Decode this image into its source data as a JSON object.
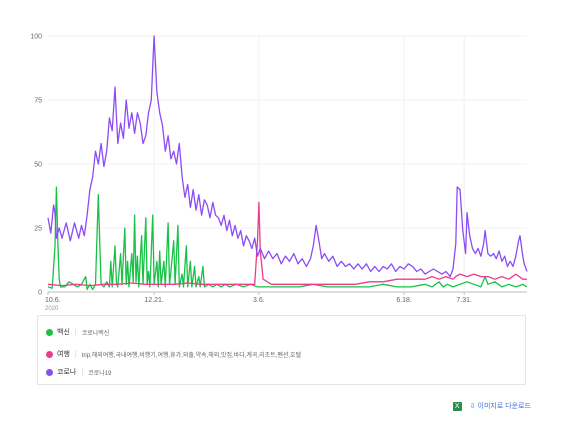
{
  "chart_data": {
    "type": "line",
    "ylim": [
      0,
      100
    ],
    "yticks": [
      "0",
      "25",
      "50",
      "75",
      "100"
    ],
    "xticks": [
      {
        "label": "10.6.",
        "sub": "2020",
        "day": 0
      },
      {
        "label": "12.21.",
        "day": 76
      },
      {
        "label": "3.6.",
        "day": 151
      },
      {
        "label": "6.18.",
        "day": 255
      },
      {
        "label": "7.31.",
        "day": 298
      }
    ],
    "x_range_days": [
      0,
      343
    ],
    "grid": true,
    "series": [
      {
        "name": "코로나",
        "color": "#8c4cf5",
        "points": [
          [
            0,
            29
          ],
          [
            2,
            23
          ],
          [
            4,
            34
          ],
          [
            5,
            31
          ],
          [
            6,
            21
          ],
          [
            8,
            25
          ],
          [
            10,
            21
          ],
          [
            13,
            27
          ],
          [
            16,
            20
          ],
          [
            19,
            27
          ],
          [
            22,
            21
          ],
          [
            24,
            26
          ],
          [
            26,
            22
          ],
          [
            28,
            30
          ],
          [
            30,
            40
          ],
          [
            32,
            45
          ],
          [
            34,
            55
          ],
          [
            36,
            50
          ],
          [
            38,
            58
          ],
          [
            40,
            49
          ],
          [
            42,
            55
          ],
          [
            44,
            68
          ],
          [
            46,
            63
          ],
          [
            48,
            80
          ],
          [
            50,
            58
          ],
          [
            52,
            66
          ],
          [
            54,
            60
          ],
          [
            56,
            75
          ],
          [
            58,
            64
          ],
          [
            60,
            70
          ],
          [
            62,
            62
          ],
          [
            64,
            70
          ],
          [
            66,
            66
          ],
          [
            68,
            58
          ],
          [
            70,
            61
          ],
          [
            72,
            70
          ],
          [
            74,
            75
          ],
          [
            75,
            88
          ],
          [
            76,
            100
          ],
          [
            78,
            78
          ],
          [
            80,
            70
          ],
          [
            82,
            65
          ],
          [
            84,
            55
          ],
          [
            86,
            61
          ],
          [
            88,
            52
          ],
          [
            90,
            55
          ],
          [
            92,
            50
          ],
          [
            94,
            58
          ],
          [
            96,
            45
          ],
          [
            98,
            37
          ],
          [
            100,
            42
          ],
          [
            102,
            33
          ],
          [
            104,
            40
          ],
          [
            106,
            32
          ],
          [
            108,
            38
          ],
          [
            110,
            30
          ],
          [
            112,
            36
          ],
          [
            114,
            34
          ],
          [
            116,
            29
          ],
          [
            118,
            35
          ],
          [
            120,
            30
          ],
          [
            122,
            29
          ],
          [
            124,
            26
          ],
          [
            126,
            30
          ],
          [
            128,
            24
          ],
          [
            130,
            28
          ],
          [
            132,
            22
          ],
          [
            134,
            26
          ],
          [
            136,
            21
          ],
          [
            138,
            24
          ],
          [
            140,
            18
          ],
          [
            142,
            22
          ],
          [
            144,
            20
          ],
          [
            146,
            17
          ],
          [
            148,
            21
          ],
          [
            150,
            14
          ],
          [
            152,
            17
          ],
          [
            155,
            13
          ],
          [
            158,
            16
          ],
          [
            161,
            13
          ],
          [
            164,
            15
          ],
          [
            167,
            11
          ],
          [
            170,
            14
          ],
          [
            173,
            12
          ],
          [
            176,
            15
          ],
          [
            179,
            11
          ],
          [
            182,
            13
          ],
          [
            185,
            10
          ],
          [
            188,
            13
          ],
          [
            190,
            18
          ],
          [
            192,
            26
          ],
          [
            194,
            20
          ],
          [
            196,
            13
          ],
          [
            198,
            15
          ],
          [
            201,
            12
          ],
          [
            204,
            14
          ],
          [
            207,
            10
          ],
          [
            210,
            12
          ],
          [
            213,
            10
          ],
          [
            216,
            11
          ],
          [
            219,
            9
          ],
          [
            222,
            11
          ],
          [
            225,
            9
          ],
          [
            228,
            11
          ],
          [
            231,
            8
          ],
          [
            234,
            10
          ],
          [
            237,
            8
          ],
          [
            240,
            10
          ],
          [
            243,
            9
          ],
          [
            246,
            11
          ],
          [
            249,
            8
          ],
          [
            252,
            10
          ],
          [
            255,
            9
          ],
          [
            258,
            11
          ],
          [
            261,
            10
          ],
          [
            264,
            8
          ],
          [
            267,
            9
          ],
          [
            270,
            7
          ],
          [
            273,
            8
          ],
          [
            276,
            9
          ],
          [
            279,
            8
          ],
          [
            282,
            7
          ],
          [
            285,
            8
          ],
          [
            288,
            6
          ],
          [
            290,
            9
          ],
          [
            292,
            19
          ],
          [
            293,
            41
          ],
          [
            295,
            40
          ],
          [
            297,
            24
          ],
          [
            299,
            15
          ],
          [
            300,
            31
          ],
          [
            302,
            22
          ],
          [
            304,
            17
          ],
          [
            306,
            15
          ],
          [
            308,
            17
          ],
          [
            310,
            14
          ],
          [
            312,
            19
          ],
          [
            313,
            24
          ],
          [
            315,
            15
          ],
          [
            317,
            14
          ],
          [
            319,
            15
          ],
          [
            321,
            13
          ],
          [
            323,
            16
          ],
          [
            325,
            12
          ],
          [
            327,
            14
          ],
          [
            329,
            10
          ],
          [
            331,
            12
          ],
          [
            333,
            10
          ],
          [
            335,
            14
          ],
          [
            337,
            20
          ],
          [
            338,
            22
          ],
          [
            340,
            14
          ],
          [
            341,
            11
          ],
          [
            343,
            8
          ]
        ]
      },
      {
        "name": "여행",
        "color": "#ee3b8b",
        "points": [
          [
            0,
            3
          ],
          [
            10,
            2.5
          ],
          [
            20,
            3
          ],
          [
            30,
            2.5
          ],
          [
            40,
            3
          ],
          [
            50,
            3
          ],
          [
            60,
            3.5
          ],
          [
            70,
            3
          ],
          [
            80,
            3
          ],
          [
            90,
            3
          ],
          [
            100,
            3.5
          ],
          [
            110,
            3
          ],
          [
            120,
            3
          ],
          [
            130,
            3
          ],
          [
            140,
            3
          ],
          [
            148,
            3
          ],
          [
            150,
            20
          ],
          [
            151,
            35
          ],
          [
            152,
            16
          ],
          [
            154,
            5
          ],
          [
            160,
            3
          ],
          [
            170,
            3
          ],
          [
            180,
            3
          ],
          [
            190,
            3
          ],
          [
            200,
            3
          ],
          [
            210,
            3
          ],
          [
            220,
            3
          ],
          [
            230,
            4
          ],
          [
            240,
            4
          ],
          [
            250,
            5
          ],
          [
            260,
            5
          ],
          [
            270,
            5
          ],
          [
            275,
            6
          ],
          [
            280,
            5
          ],
          [
            285,
            6
          ],
          [
            290,
            5
          ],
          [
            292,
            6
          ],
          [
            295,
            7
          ],
          [
            300,
            6
          ],
          [
            305,
            7
          ],
          [
            310,
            6
          ],
          [
            315,
            6
          ],
          [
            320,
            5
          ],
          [
            325,
            6
          ],
          [
            330,
            5
          ],
          [
            335,
            7
          ],
          [
            340,
            5
          ],
          [
            343,
            5
          ]
        ]
      },
      {
        "name": "백신",
        "color": "#19c146",
        "points": [
          [
            0,
            2
          ],
          [
            3,
            1.5
          ],
          [
            5,
            18
          ],
          [
            6,
            41
          ],
          [
            7,
            20
          ],
          [
            8,
            5
          ],
          [
            9,
            2
          ],
          [
            12,
            2
          ],
          [
            15,
            4
          ],
          [
            18,
            3
          ],
          [
            21,
            2
          ],
          [
            24,
            3
          ],
          [
            27,
            6
          ],
          [
            28,
            1
          ],
          [
            30,
            3
          ],
          [
            32,
            1
          ],
          [
            34,
            3
          ],
          [
            36,
            38
          ],
          [
            37,
            20
          ],
          [
            38,
            3
          ],
          [
            40,
            2
          ],
          [
            42,
            4
          ],
          [
            44,
            2
          ],
          [
            45,
            12
          ],
          [
            46,
            2
          ],
          [
            48,
            18
          ],
          [
            49,
            4
          ],
          [
            50,
            2
          ],
          [
            52,
            15
          ],
          [
            53,
            3
          ],
          [
            55,
            25
          ],
          [
            56,
            3
          ],
          [
            57,
            12
          ],
          [
            58,
            2
          ],
          [
            60,
            15
          ],
          [
            61,
            4
          ],
          [
            62,
            30
          ],
          [
            63,
            4
          ],
          [
            64,
            14
          ],
          [
            65,
            2
          ],
          [
            67,
            22
          ],
          [
            68,
            3
          ],
          [
            70,
            29
          ],
          [
            71,
            3
          ],
          [
            72,
            8
          ],
          [
            73,
            2
          ],
          [
            75,
            30
          ],
          [
            76,
            3
          ],
          [
            78,
            12
          ],
          [
            79,
            2
          ],
          [
            80,
            16
          ],
          [
            81,
            3
          ],
          [
            83,
            12
          ],
          [
            84,
            2
          ],
          [
            86,
            27
          ],
          [
            87,
            3
          ],
          [
            88,
            8
          ],
          [
            90,
            20
          ],
          [
            91,
            3
          ],
          [
            93,
            26
          ],
          [
            94,
            2
          ],
          [
            96,
            7
          ],
          [
            97,
            2
          ],
          [
            99,
            18
          ],
          [
            100,
            2
          ],
          [
            102,
            12
          ],
          [
            103,
            2
          ],
          [
            105,
            10
          ],
          [
            106,
            2
          ],
          [
            108,
            6
          ],
          [
            109,
            2
          ],
          [
            111,
            10
          ],
          [
            112,
            2
          ],
          [
            115,
            3
          ],
          [
            118,
            2
          ],
          [
            121,
            3
          ],
          [
            124,
            2
          ],
          [
            127,
            3
          ],
          [
            130,
            2
          ],
          [
            135,
            3
          ],
          [
            140,
            2
          ],
          [
            145,
            3
          ],
          [
            150,
            2
          ],
          [
            155,
            2
          ],
          [
            160,
            2
          ],
          [
            170,
            2
          ],
          [
            180,
            2
          ],
          [
            190,
            3
          ],
          [
            200,
            2
          ],
          [
            210,
            2
          ],
          [
            220,
            2
          ],
          [
            230,
            2
          ],
          [
            240,
            3
          ],
          [
            250,
            2
          ],
          [
            260,
            2
          ],
          [
            270,
            3
          ],
          [
            275,
            2
          ],
          [
            280,
            4
          ],
          [
            283,
            2
          ],
          [
            286,
            3
          ],
          [
            290,
            2
          ],
          [
            295,
            3
          ],
          [
            300,
            4
          ],
          [
            305,
            3
          ],
          [
            310,
            2
          ],
          [
            313,
            6
          ],
          [
            315,
            3
          ],
          [
            320,
            4
          ],
          [
            325,
            2
          ],
          [
            330,
            3
          ],
          [
            335,
            2
          ],
          [
            340,
            3
          ],
          [
            343,
            2
          ]
        ]
      }
    ]
  },
  "legend": [
    {
      "name": "백신",
      "keywords": "코로나백신",
      "color": "#19c146"
    },
    {
      "name": "여행",
      "keywords": "trip,해외여행,국내여행,비행기,여행,휴가,외출,약속,해외,맛집,바다,계곡,리조트,펜션,호텔",
      "color": "#ee3b8b"
    },
    {
      "name": "코로나",
      "keywords": "코로나19",
      "color": "#8c4cf5"
    }
  ],
  "footer": {
    "excel_icon": "excel-icon",
    "download_label": "이미지로 다운로드",
    "download_icon": "download-icon"
  }
}
